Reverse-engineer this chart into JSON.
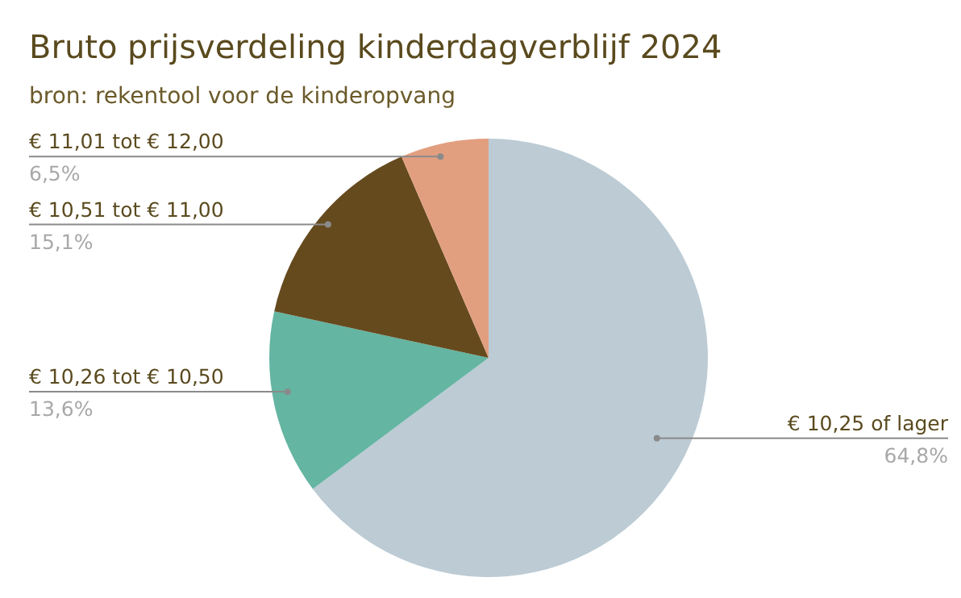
{
  "chart_data": {
    "type": "pie",
    "title": "Bruto prijsverdeling kinderdagverblijf 2024",
    "subtitle": "bron: rekentool voor de kinderopvang",
    "categories": [
      "€ 10,25 of lager",
      "€ 10,26 tot € 10,50",
      "€ 10,51 tot € 11,00",
      "€ 11,01 tot € 12,00"
    ],
    "values": [
      64.8,
      13.6,
      15.1,
      6.5
    ],
    "value_labels": [
      "64,8%",
      "13,6%",
      "15,1%",
      "6,5%"
    ],
    "colors": [
      "#bccbd4",
      "#64b5a2",
      "#654a1e",
      "#e29f80"
    ],
    "legend": false
  }
}
